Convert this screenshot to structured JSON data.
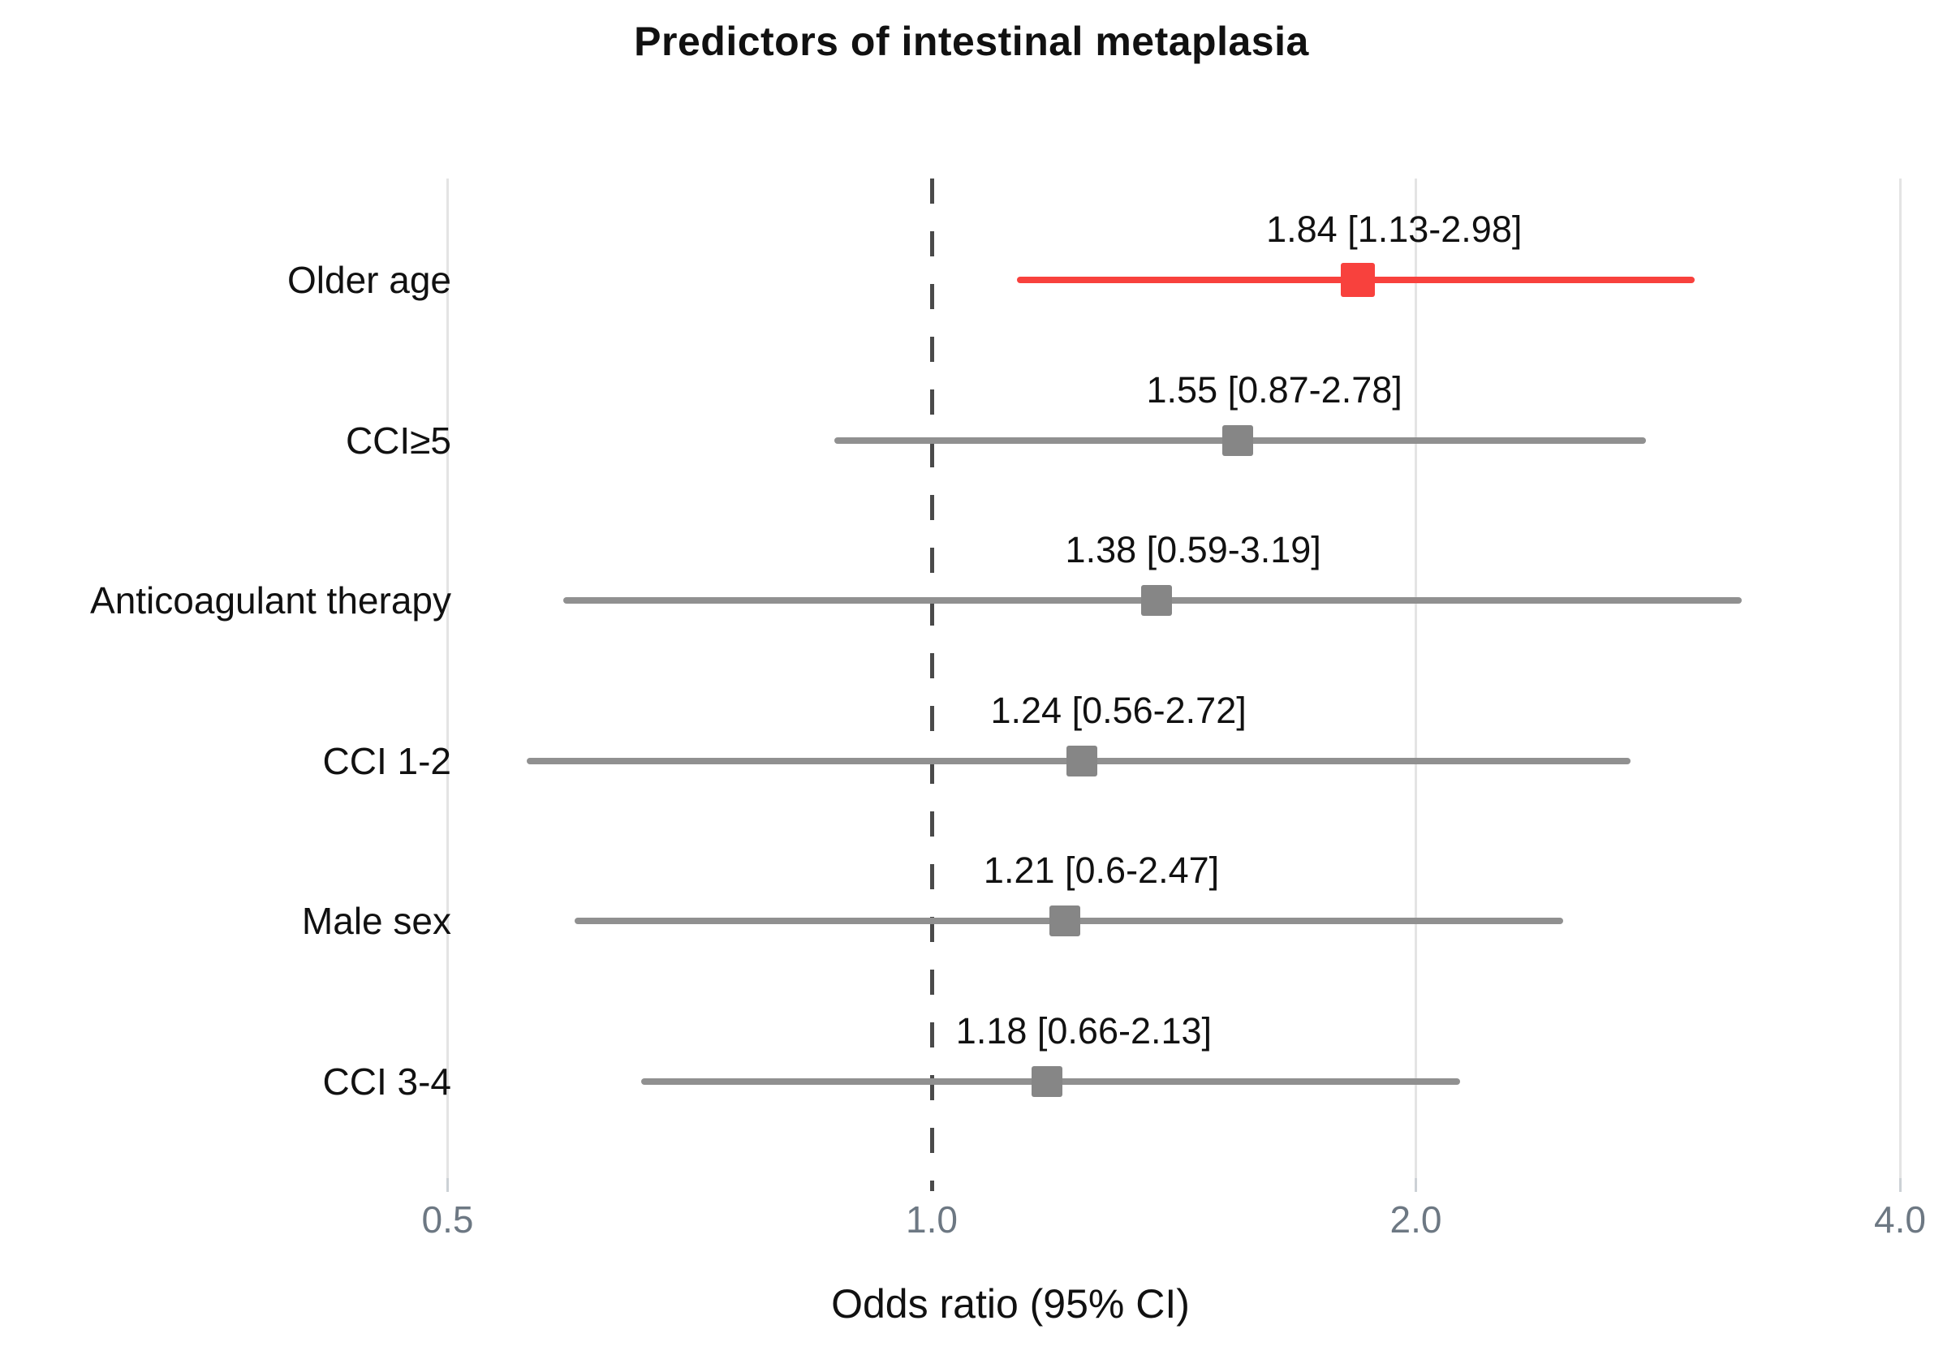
{
  "title": "Predictors of intestinal metaplasia",
  "xlabel": "Odds ratio (95% CI)",
  "colors": {
    "highlight": "#f8413d",
    "ci_line": "#909090",
    "marker": "#868686",
    "gridline": "#e4e4e4",
    "reference_line": "#4a4a4a",
    "tick_label": "#6d7883",
    "text": "#111111"
  },
  "chart_data": {
    "type": "forest",
    "title": "Predictors of intestinal metaplasia",
    "xlabel": "Odds ratio (95% CI)",
    "x_scale": "log",
    "x_ticks": [
      0.5,
      1.0,
      2.0,
      4.0
    ],
    "x_tick_labels": [
      "0.5",
      "1.0",
      "2.0",
      "4.0"
    ],
    "xlim": [
      0.42,
      4.3
    ],
    "reference_line": 1.0,
    "grid": "vertical-only",
    "legend": "none",
    "rows": [
      {
        "label": "Older age",
        "or": 1.84,
        "ci_low": 1.13,
        "ci_high": 2.98,
        "annotation": "1.84 [1.13-2.98]",
        "highlight": true
      },
      {
        "label": "CCI≥5",
        "or": 1.55,
        "ci_low": 0.87,
        "ci_high": 2.78,
        "annotation": "1.55 [0.87-2.78]",
        "highlight": false
      },
      {
        "label": "Anticoagulant therapy",
        "or": 1.38,
        "ci_low": 0.59,
        "ci_high": 3.19,
        "annotation": "1.38 [0.59-3.19]",
        "highlight": false
      },
      {
        "label": "CCI 1-2",
        "or": 1.24,
        "ci_low": 0.56,
        "ci_high": 2.72,
        "annotation": "1.24 [0.56-2.72]",
        "highlight": false
      },
      {
        "label": "Male sex",
        "or": 1.21,
        "ci_low": 0.6,
        "ci_high": 2.47,
        "annotation": "1.21 [0.6-2.47]",
        "highlight": false
      },
      {
        "label": "CCI 3-4",
        "or": 1.18,
        "ci_low": 0.66,
        "ci_high": 2.13,
        "annotation": "1.18 [0.66-2.13]",
        "highlight": false
      }
    ]
  }
}
